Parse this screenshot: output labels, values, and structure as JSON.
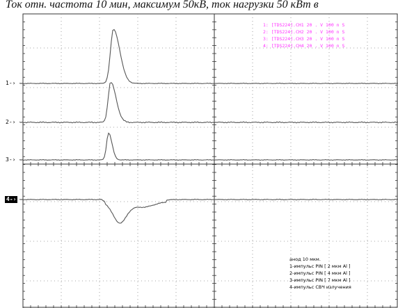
{
  "caption": "Ток отн. частота 10 мин, максимум 50кВ, ток нагрузки 50 кВт в",
  "legend": [
    "1: [TDS224].CH1  20 . V     100 n S",
    "2: [TDS224].CH2  20 . V     100 n S",
    "3: [TDS224].CH3  20 . V     100 n S",
    "4: [TDS224].CH4  20 . V     100 n S"
  ],
  "channels": [
    {
      "label": "1-›",
      "baseline": 120
    },
    {
      "label": "2-›",
      "baseline": 176
    },
    {
      "label": "3-›",
      "baseline": 230
    },
    {
      "label": "4-›",
      "baseline": 287,
      "active": true
    }
  ],
  "notes": [
    "анод 10 мкм.",
    "1-импульс PIN [ 2 мкм Al ]",
    "2-импульс PIN [ 4 мкм Al ]",
    "3-импульс PIN [ 7 мкм Al ]",
    "4-импульс CВЧ излучения"
  ],
  "colors": {
    "trace": "#555555",
    "grid": "#888888",
    "legend": "#ff33ff"
  }
}
